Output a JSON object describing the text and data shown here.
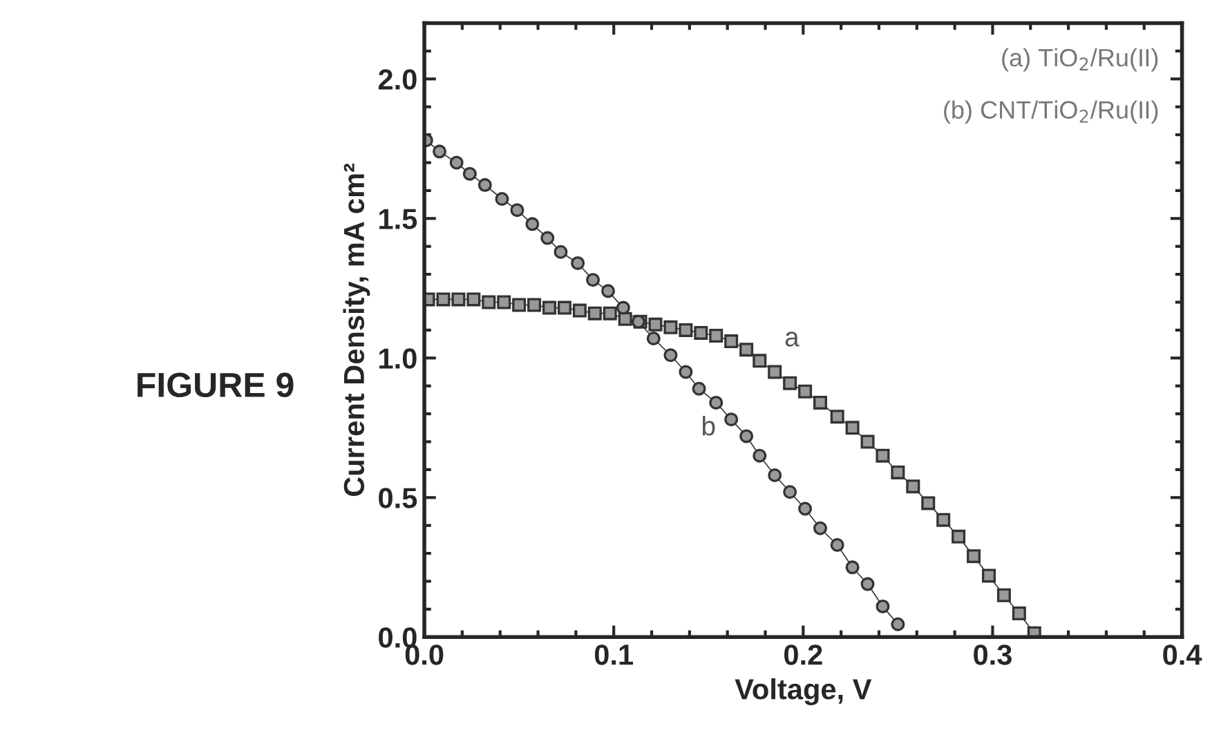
{
  "chart_data": {
    "type": "line",
    "xlabel": "Voltage, V",
    "ylabel": "Current Density, mA cm²",
    "xlim": [
      0,
      0.4
    ],
    "ylim": [
      0,
      2.2
    ],
    "xticks": [
      {
        "value": 0,
        "label": "0.0"
      },
      {
        "value": 0.1,
        "label": "0.1"
      },
      {
        "value": 0.2,
        "label": "0.2"
      },
      {
        "value": 0.3,
        "label": "0.3"
      },
      {
        "value": 0.4,
        "label": "0.4"
      }
    ],
    "yticks": [
      {
        "value": 0,
        "label": "0.0"
      },
      {
        "value": 0.5,
        "label": "0.5"
      },
      {
        "value": 1.0,
        "label": "1.0"
      },
      {
        "value": 1.5,
        "label": "1.5"
      },
      {
        "value": 2.0,
        "label": "2.0"
      }
    ],
    "grid": false,
    "legend": false,
    "line_style": "solid",
    "series": [
      {
        "color": "#333333",
        "marker": "square",
        "x": [
          0.002,
          0.01,
          0.018,
          0.026,
          0.034,
          0.042,
          0.05,
          0.058,
          0.066,
          0.074,
          0.082,
          0.09,
          0.098,
          0.106,
          0.114,
          0.122,
          0.13,
          0.138,
          0.146,
          0.154,
          0.162,
          0.17,
          0.177,
          0.185,
          0.193,
          0.201,
          0.209,
          0.218,
          0.226,
          0.234,
          0.242,
          0.25,
          0.258,
          0.266,
          0.274,
          0.282,
          0.29,
          0.298,
          0.306,
          0.314,
          0.322
        ],
        "values": [
          1.21,
          1.21,
          1.21,
          1.21,
          1.2,
          1.2,
          1.19,
          1.19,
          1.18,
          1.18,
          1.17,
          1.16,
          1.16,
          1.14,
          1.13,
          1.12,
          1.11,
          1.1,
          1.09,
          1.08,
          1.06,
          1.03,
          0.99,
          0.95,
          0.91,
          0.88,
          0.84,
          0.79,
          0.75,
          0.7,
          0.65,
          0.59,
          0.54,
          0.48,
          0.42,
          0.36,
          0.29,
          0.22,
          0.15,
          0.085,
          0.014
        ]
      },
      {
        "color": "#333333",
        "marker": "circle",
        "x": [
          0.001,
          0.008,
          0.017,
          0.024,
          0.032,
          0.041,
          0.049,
          0.057,
          0.065,
          0.072,
          0.081,
          0.089,
          0.097,
          0.105,
          0.113,
          0.121,
          0.13,
          0.138,
          0.145,
          0.154,
          0.162,
          0.17,
          0.177,
          0.185,
          0.193,
          0.201,
          0.209,
          0.218,
          0.226,
          0.234,
          0.242,
          0.25
        ],
        "values": [
          1.78,
          1.74,
          1.7,
          1.66,
          1.62,
          1.57,
          1.53,
          1.48,
          1.43,
          1.38,
          1.34,
          1.28,
          1.24,
          1.18,
          1.13,
          1.07,
          1.01,
          0.95,
          0.89,
          0.84,
          0.78,
          0.72,
          0.65,
          0.58,
          0.52,
          0.46,
          0.39,
          0.33,
          0.25,
          0.19,
          0.11,
          0.046
        ]
      }
    ],
    "annotations": [
      "FIGURE 9",
      "(a) TiO$_{2}$/Ru(II)",
      "(b) CNT/TiO$_{2}$/Ru(II)",
      "a",
      "b"
    ]
  }
}
